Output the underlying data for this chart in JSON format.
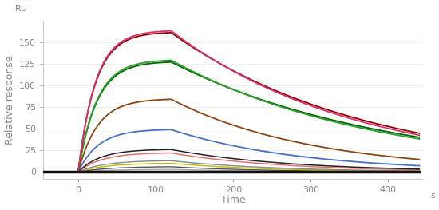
{
  "title": "",
  "xlabel": "Time",
  "ylabel": "Relative response",
  "xlabel_unit": "s",
  "ylabel_unit": "RU",
  "xlim": [
    -45,
    445
  ],
  "ylim": [
    -8,
    175
  ],
  "xticks": [
    0,
    100,
    200,
    300,
    400
  ],
  "yticks": [
    0,
    25,
    50,
    75,
    100,
    125,
    150
  ],
  "background_color": "#ffffff",
  "series": [
    {
      "peak": 163,
      "color": "#d63370",
      "lw": 1.3,
      "ka": 0.045,
      "kd": 0.0042,
      "decay_end": 40
    },
    {
      "peak": 161,
      "color": "#8B0000",
      "lw": 1.3,
      "ka": 0.045,
      "kd": 0.004,
      "decay_end": 38
    },
    {
      "peak": 129,
      "color": "#2ca02c",
      "lw": 1.3,
      "ka": 0.042,
      "kd": 0.0038,
      "decay_end": 34
    },
    {
      "peak": 127,
      "color": "#006400",
      "lw": 1.3,
      "ka": 0.042,
      "kd": 0.0036,
      "decay_end": 32
    },
    {
      "peak": 84,
      "color": "#8B4513",
      "lw": 1.3,
      "ka": 0.04,
      "kd": 0.0055,
      "decay_end": 20
    },
    {
      "peak": 49,
      "color": "#4472C4",
      "lw": 1.3,
      "ka": 0.038,
      "kd": 0.006,
      "decay_end": 13
    },
    {
      "peak": 26,
      "color": "#222222",
      "lw": 1.1,
      "ka": 0.035,
      "kd": 0.0065,
      "decay_end": 7
    },
    {
      "peak": 22,
      "color": "#e07070",
      "lw": 1.1,
      "ka": 0.033,
      "kd": 0.007,
      "decay_end": 6
    },
    {
      "peak": 13,
      "color": "#888888",
      "lw": 1.0,
      "ka": 0.03,
      "kd": 0.0075,
      "decay_end": 3
    },
    {
      "peak": 10,
      "color": "#bbbb00",
      "lw": 1.0,
      "ka": 0.028,
      "kd": 0.008,
      "decay_end": 2
    },
    {
      "peak": 6,
      "color": "#555555",
      "lw": 1.0,
      "ka": 0.025,
      "kd": 0.0085,
      "decay_end": 1
    },
    {
      "peak": 3,
      "color": "#aaaaaa",
      "lw": 1.0,
      "ka": 0.022,
      "kd": 0.009,
      "decay_end": 0.5
    }
  ],
  "t_on": 0,
  "t_off": 120,
  "t_end": 440,
  "baseline_color": "#111111",
  "baseline_lw": 2.5,
  "grid_color": "#e8e8e8",
  "tick_color": "#888888",
  "label_color": "#888888",
  "spine_color": "#cccccc"
}
